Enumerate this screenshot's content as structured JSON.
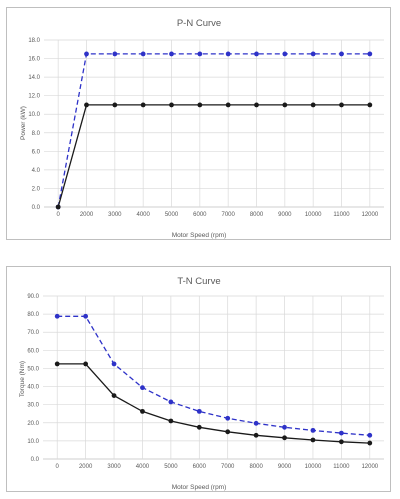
{
  "chart_data": [
    {
      "type": "line",
      "title": "P-N Curve",
      "xlabel": "Motor Speed (rpm)",
      "ylabel": "Power (kW)",
      "ylim": [
        0,
        18
      ],
      "yticks": [
        "0.0",
        "2.0",
        "4.0",
        "6.0",
        "8.0",
        "10.0",
        "12.0",
        "14.0",
        "16.0",
        "18.0"
      ],
      "x": [
        0,
        2000,
        3000,
        4000,
        5000,
        6000,
        7000,
        8000,
        9000,
        10000,
        11000,
        12000
      ],
      "grid": true,
      "series": [
        {
          "values": [
            0,
            16.5,
            16.5,
            16.5,
            16.5,
            16.5,
            16.5,
            16.5,
            16.5,
            16.5,
            16.5,
            16.5
          ],
          "color": "#2e32c8",
          "style": "dashed"
        },
        {
          "values": [
            0,
            11.0,
            11.0,
            11.0,
            11.0,
            11.0,
            11.0,
            11.0,
            11.0,
            11.0,
            11.0,
            11.0
          ],
          "color": "#1a1a1a",
          "style": "solid"
        }
      ]
    },
    {
      "type": "line",
      "title": "T-N Curve",
      "xlabel": "Motor Speed (rpm)",
      "ylabel": "Torque (Nm)",
      "ylim": [
        0,
        90
      ],
      "yticks": [
        "0.0",
        "10.0",
        "20.0",
        "30.0",
        "40.0",
        "50.0",
        "60.0",
        "70.0",
        "80.0",
        "90.0"
      ],
      "x": [
        0,
        2000,
        3000,
        4000,
        5000,
        6000,
        7000,
        8000,
        9000,
        10000,
        11000,
        12000
      ],
      "grid": true,
      "series": [
        {
          "values": [
            78.8,
            78.8,
            52.5,
            39.4,
            31.5,
            26.3,
            22.5,
            19.7,
            17.5,
            15.8,
            14.3,
            13.1
          ],
          "color": "#2e32c8",
          "style": "dashed"
        },
        {
          "values": [
            52.5,
            52.5,
            35.0,
            26.3,
            21.0,
            17.5,
            15.0,
            13.1,
            11.7,
            10.5,
            9.5,
            8.8
          ],
          "color": "#1a1a1a",
          "style": "solid"
        }
      ]
    }
  ]
}
